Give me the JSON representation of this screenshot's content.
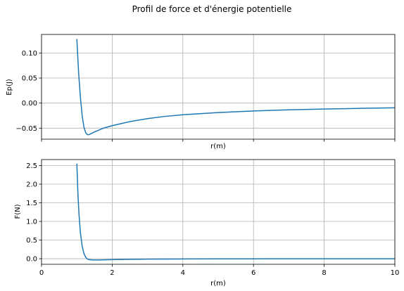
{
  "figure_title": "Profil de force et d'énergie potentielle",
  "chart_data": [
    {
      "type": "line",
      "title": "",
      "xlabel": "r(m)",
      "ylabel": "Ep(J)",
      "xlim": [
        0,
        10
      ],
      "ylim": [
        -0.072,
        0.137
      ],
      "grid": true,
      "xticks": [
        0,
        2,
        4,
        6,
        8,
        10
      ],
      "xtick_labels_shown": false,
      "yticks": [
        -0.05,
        0.0,
        0.05,
        0.1
      ],
      "ytick_labels": [
        "−0.05",
        "0.00",
        "0.05",
        "0.10"
      ],
      "color": "#1f77b4",
      "series": [
        {
          "x": [
            1.0,
            1.05,
            1.1,
            1.15,
            1.2,
            1.25,
            1.3,
            1.35,
            1.4,
            1.5,
            1.6,
            1.7,
            1.8,
            2.0,
            2.25,
            2.5,
            3.0,
            3.5,
            4.0,
            5.0,
            6.0,
            7.0,
            8.0,
            9.0,
            10.0
          ],
          "values": [
            0.128,
            0.06,
            0.012,
            -0.025,
            -0.048,
            -0.059,
            -0.063,
            -0.0628,
            -0.061,
            -0.0575,
            -0.0545,
            -0.0515,
            -0.049,
            -0.045,
            -0.041,
            -0.037,
            -0.031,
            -0.0265,
            -0.0233,
            -0.0188,
            -0.0157,
            -0.0134,
            -0.0118,
            -0.0105,
            -0.0094
          ]
        }
      ]
    },
    {
      "type": "line",
      "title": "",
      "xlabel": "r(m)",
      "ylabel": "F(N)",
      "xlim": [
        0,
        10
      ],
      "ylim": [
        -0.15,
        2.66
      ],
      "grid": true,
      "xticks": [
        0,
        2,
        4,
        6,
        8,
        10
      ],
      "xtick_labels": [
        "0",
        "2",
        "4",
        "6",
        "8",
        "10"
      ],
      "yticks": [
        0.0,
        0.5,
        1.0,
        1.5,
        2.0,
        2.5
      ],
      "ytick_labels": [
        "0.0",
        "0.5",
        "1.0",
        "1.5",
        "2.0",
        "2.5"
      ],
      "color": "#1f77b4",
      "series": [
        {
          "x": [
            1.0,
            1.03,
            1.06,
            1.1,
            1.15,
            1.2,
            1.25,
            1.3,
            1.35,
            1.4,
            1.5,
            1.6,
            1.8,
            2.0,
            2.5,
            3.0,
            4.0,
            5.0,
            6.0,
            7.0,
            8.0,
            9.0,
            10.0
          ],
          "values": [
            2.55,
            1.75,
            1.2,
            0.7,
            0.34,
            0.14,
            0.04,
            -0.01,
            -0.025,
            -0.03,
            -0.035,
            -0.035,
            -0.03,
            -0.025,
            -0.018,
            -0.012,
            -0.007,
            -0.004,
            -0.003,
            -0.002,
            -0.0015,
            -0.001,
            -0.001
          ]
        }
      ]
    }
  ]
}
